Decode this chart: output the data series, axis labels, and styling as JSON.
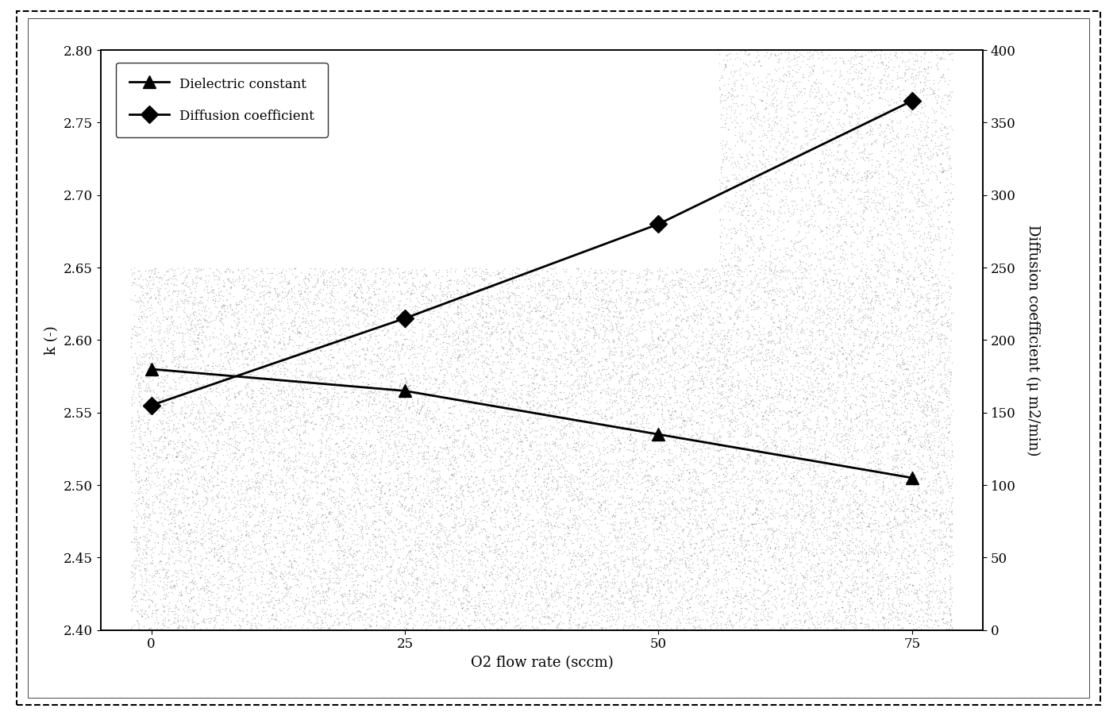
{
  "x": [
    0,
    25,
    50,
    75
  ],
  "dielectric": [
    2.58,
    2.565,
    2.535,
    2.505
  ],
  "diffusion": [
    155,
    215,
    280,
    365
  ],
  "xlabel": "O2 flow rate (sccm)",
  "ylabel_left": "k (-)",
  "ylabel_right": "Diffusion coefficient (μ m2/min)",
  "ylim_left": [
    2.4,
    2.8
  ],
  "ylim_right": [
    0,
    400
  ],
  "yticks_left": [
    2.4,
    2.45,
    2.5,
    2.55,
    2.6,
    2.65,
    2.7,
    2.75,
    2.8
  ],
  "yticks_right": [
    0,
    50,
    100,
    150,
    200,
    250,
    300,
    350,
    400
  ],
  "xticks": [
    0,
    25,
    50,
    75
  ],
  "legend_dielectric": "Dielectric constant",
  "legend_diffusion": "Diffusion coefficient",
  "line_color": "#000000",
  "plot_bg_speckled": "#b8b8b8",
  "plot_bg_white": "#ffffff",
  "legend_bg": "#ffffff",
  "figure_bg": "#ffffff",
  "outer_bg": "#e8e8e8",
  "speckle_threshold": 2.65,
  "label_fontsize": 13,
  "tick_fontsize": 12,
  "legend_fontsize": 12
}
